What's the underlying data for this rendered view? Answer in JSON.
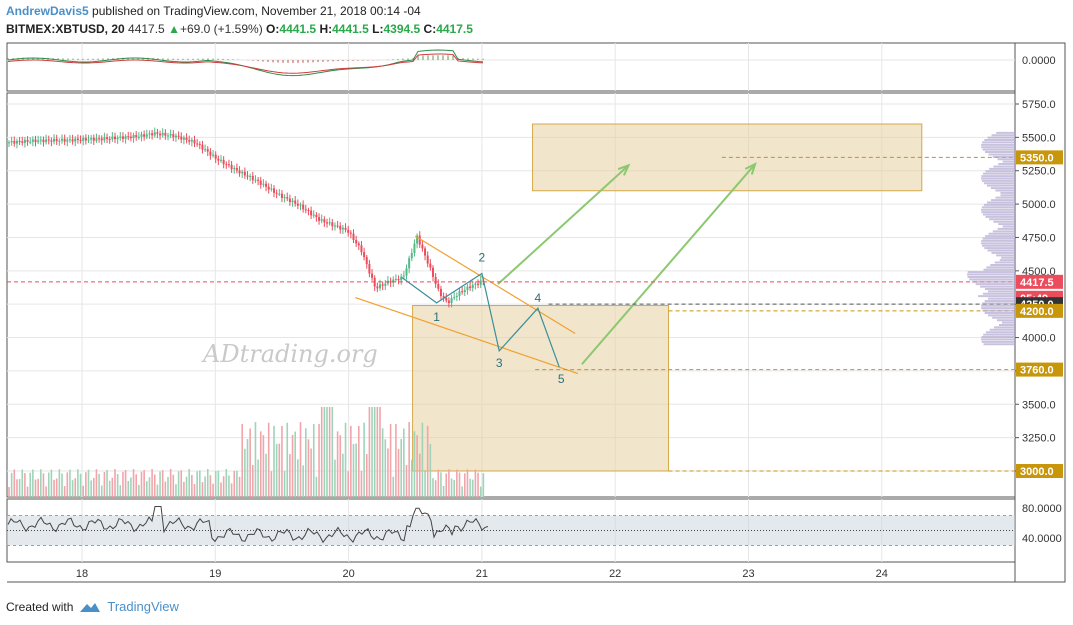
{
  "header": {
    "author": "AndrewDavis5",
    "published_text": "published on TradingView.com, November 21, 2018 00:14 -04",
    "symbol": "BITMEX:XBTUSD, 20",
    "last": "4417.5",
    "change": "+69.0 (+1.59%)",
    "o_label": "O:",
    "o": "4441.5",
    "h_label": "H:",
    "h": "4441.5",
    "l_label": "L:",
    "l": "4394.5",
    "c_label": "C:",
    "c": "4417.5"
  },
  "footer": {
    "created_with": "Created with",
    "brand": "TradingView"
  },
  "watermark": "ADtrading.org",
  "colors": {
    "up": "#53b987",
    "down": "#eb4d5c",
    "box_fill": "#e6cfa0",
    "box_stroke": "#d4a94a",
    "wedge": "#f0a030",
    "pattern": "#3a8f9a",
    "arrow": "#8cc870",
    "level_badge": "#c8960a"
  },
  "chart_data": {
    "type": "candlestick",
    "main_price_axis": {
      "ticks": [
        "5750.0",
        "5500.0",
        "5250.0",
        "5000.0",
        "4750.0",
        "4500.0",
        "4250.0",
        "4000.0",
        "3750.0",
        "3500.0",
        "3250.0",
        "3000.0"
      ]
    },
    "x_axis_ticks": [
      "18",
      "19",
      "20",
      "21",
      "22",
      "23",
      "24"
    ],
    "price_badges": [
      {
        "label": "5350.0",
        "value": 5350,
        "color": "#c8960a"
      },
      {
        "label": "4417.5",
        "value": 4417.5,
        "color": "#eb4d5c"
      },
      {
        "label": "05:49",
        "value": 4380,
        "color": "#eb4d5c"
      },
      {
        "label": "4250.0",
        "value": 4250,
        "color": "#333333"
      },
      {
        "label": "4200.0",
        "value": 4200,
        "color": "#c8960a"
      },
      {
        "label": "3760.0",
        "value": 3760,
        "color": "#c8960a"
      },
      {
        "label": "3000.0",
        "value": 3000,
        "color": "#c8960a"
      }
    ],
    "top_indicator": {
      "axis_ticks": [
        "0.0000"
      ]
    },
    "bottom_indicator": {
      "axis_ticks": [
        "80.0000",
        "40.0000"
      ]
    },
    "wave_labels": [
      "1",
      "2",
      "3",
      "4",
      "5"
    ],
    "price_path": [
      [
        17.5,
        5460
      ],
      [
        17.75,
        5475
      ],
      [
        18.0,
        5480
      ],
      [
        18.25,
        5490
      ],
      [
        18.5,
        5510
      ],
      [
        18.6,
        5530
      ],
      [
        18.75,
        5510
      ],
      [
        18.9,
        5460
      ],
      [
        19.05,
        5340
      ],
      [
        19.2,
        5250
      ],
      [
        19.35,
        5170
      ],
      [
        19.5,
        5070
      ],
      [
        19.65,
        4990
      ],
      [
        19.8,
        4880
      ],
      [
        19.9,
        4840
      ],
      [
        20.0,
        4800
      ],
      [
        20.1,
        4650
      ],
      [
        20.2,
        4370
      ],
      [
        20.3,
        4420
      ],
      [
        20.4,
        4450
      ],
      [
        20.45,
        4600
      ],
      [
        20.5,
        4760
      ],
      [
        20.58,
        4560
      ],
      [
        20.66,
        4340
      ],
      [
        20.72,
        4260
      ],
      [
        20.8,
        4330
      ],
      [
        20.88,
        4380
      ],
      [
        20.95,
        4410
      ],
      [
        21.0,
        4440
      ]
    ]
  }
}
